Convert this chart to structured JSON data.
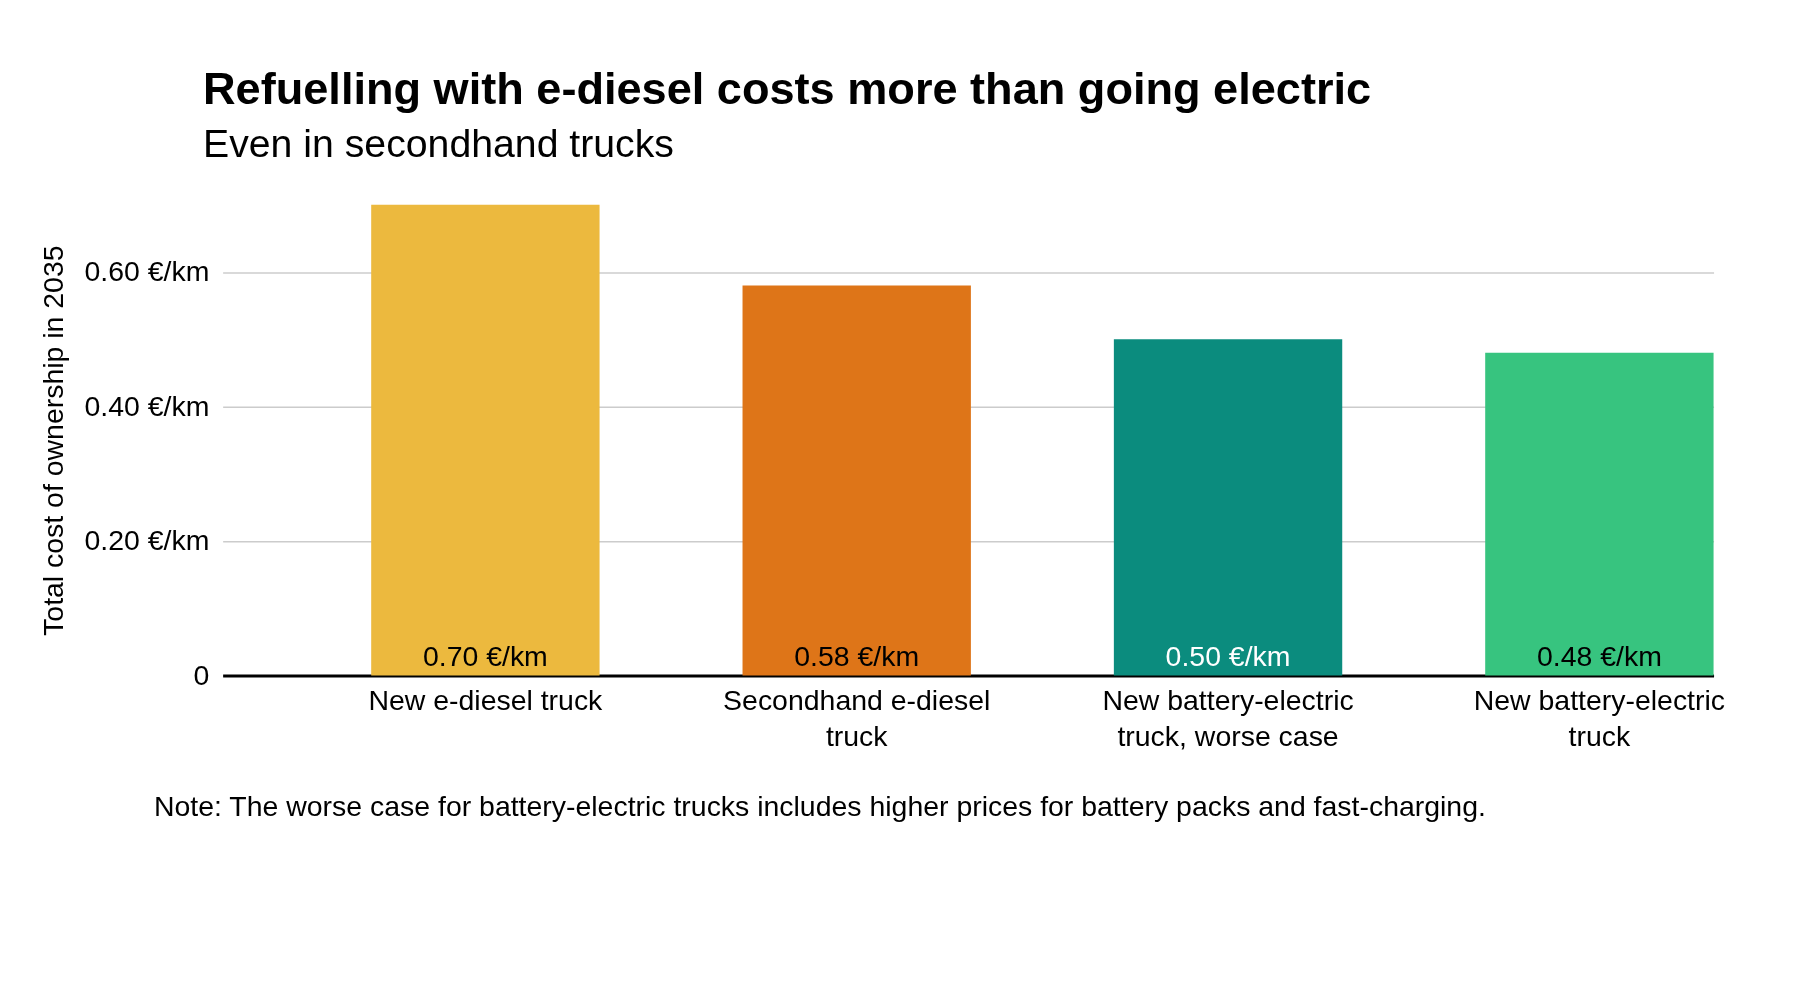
{
  "chart_data": {
    "type": "bar",
    "title": "Refuelling with e-diesel costs more than going electric",
    "subtitle": "Even in secondhand trucks",
    "ylabel": "Total cost of ownership in 2035",
    "categories": [
      "New e-diesel truck",
      "Secondhand e-diesel truck",
      "New battery-electric truck, worse case",
      "New battery-electric truck"
    ],
    "values": [
      0.7,
      0.58,
      0.5,
      0.48
    ],
    "colors": [
      "#ecb93e",
      "#de7518",
      "#0b8c7e",
      "#37c47f"
    ],
    "value_labels": [
      "0.70 €/km",
      "0.58 €/km",
      "0.50 €/km",
      "0.48 €/km"
    ],
    "ylim": [
      0,
      0.7
    ],
    "yticks": [
      0,
      {
        "value": 0.2,
        "label": "0.20 €/km"
      },
      {
        "value": 0.4,
        "label": "0.40 €/km"
      },
      {
        "value": 0.6,
        "label": "0.60 €/km"
      }
    ],
    "grid": "y",
    "annotations": [
      "Note: The worse case for battery-electric trucks includes higher prices for battery packs and fast-charging."
    ]
  }
}
